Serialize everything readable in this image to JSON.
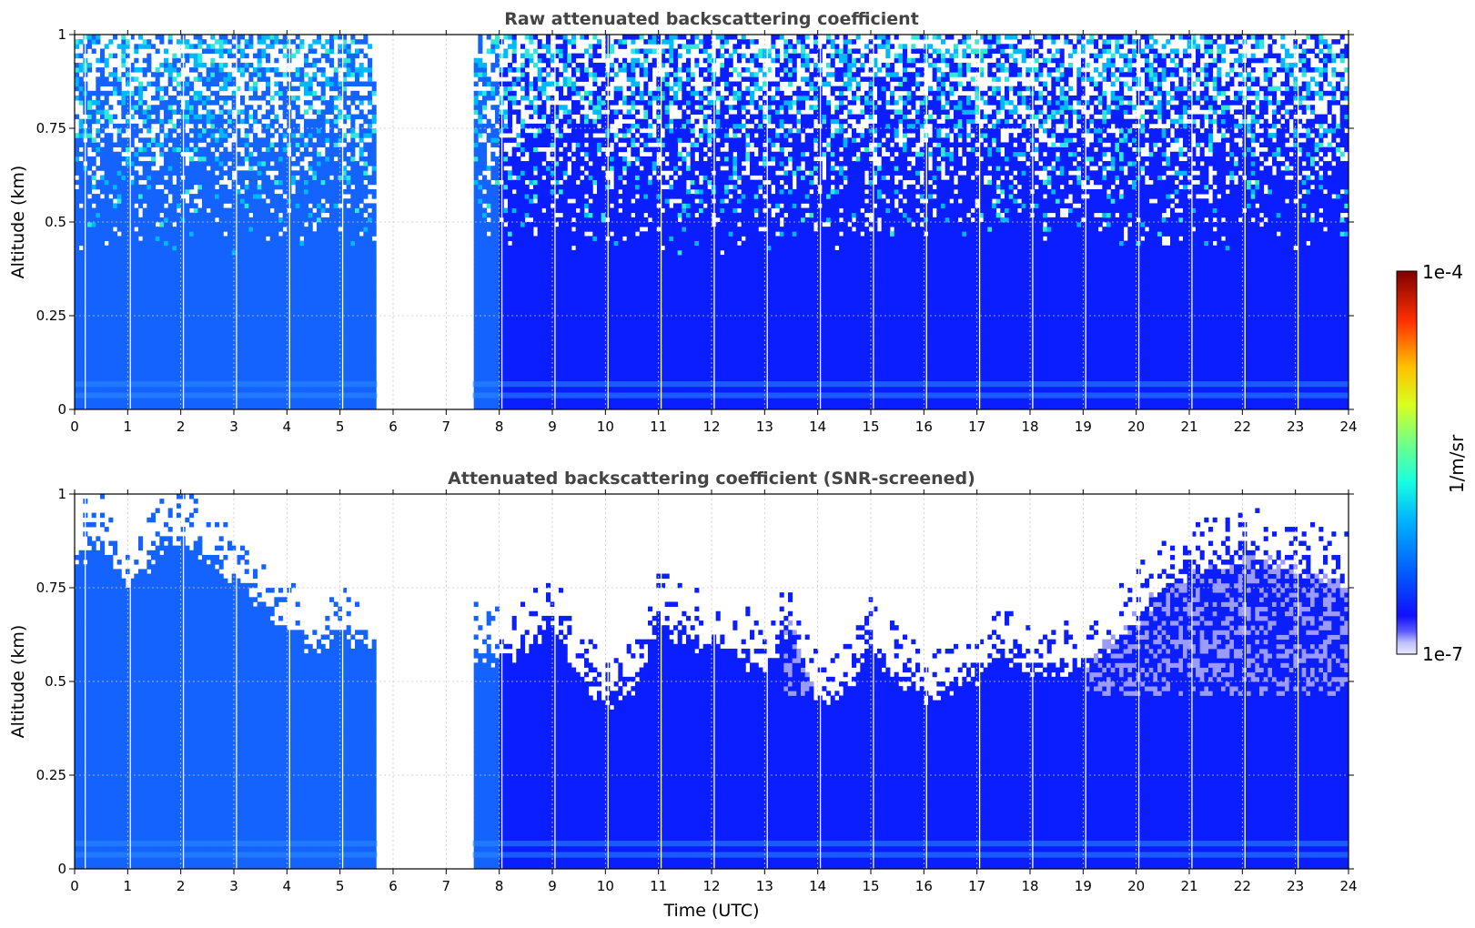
{
  "chart_data": [
    {
      "type": "heatmap",
      "title": "Raw attenuated backscattering coefficient",
      "xlabel": "",
      "ylabel": "Altitude (km)",
      "xlim": [
        0,
        24
      ],
      "ylim": [
        0,
        1
      ],
      "xticks": [
        "0",
        "1",
        "2",
        "3",
        "4",
        "5",
        "6",
        "7",
        "8",
        "9",
        "10",
        "11",
        "12",
        "13",
        "14",
        "15",
        "16",
        "17",
        "18",
        "19",
        "20",
        "21",
        "22",
        "23",
        "24"
      ],
      "yticks": [
        "0",
        "0.25",
        "0.5",
        "0.75",
        "1"
      ],
      "grid": true,
      "colorscale": "jet (log)",
      "data_gaps_utc": [
        [
          5.7,
          7.5
        ]
      ],
      "profile_breaks_utc": [
        0.2,
        1.05,
        2.05,
        3.05,
        4.05,
        5.05,
        8.05,
        9.05,
        10.05,
        11.05,
        12.05,
        13.05,
        14.05,
        15.05,
        16.05,
        17.05,
        18.05,
        19.05,
        20.05,
        21.05,
        22.05,
        23.05
      ],
      "noise_onset_altitude_km": 0.4
    },
    {
      "type": "heatmap",
      "title": "Attenuated backscattering coefficient (SNR-screened)",
      "xlabel": "Time (UTC)",
      "ylabel": "Altitude (km)",
      "xlim": [
        0,
        24
      ],
      "ylim": [
        0,
        1
      ],
      "xticks": [
        "0",
        "1",
        "2",
        "3",
        "4",
        "5",
        "6",
        "7",
        "8",
        "9",
        "10",
        "11",
        "12",
        "13",
        "14",
        "15",
        "16",
        "17",
        "18",
        "19",
        "20",
        "21",
        "22",
        "23",
        "24"
      ],
      "yticks": [
        "0",
        "0.25",
        "0.5",
        "0.75",
        "1"
      ],
      "grid": true,
      "colorscale": "jet (log)",
      "data_gaps_utc": [
        [
          5.7,
          7.5
        ]
      ],
      "profile_breaks_utc": [
        0.2,
        1.05,
        2.05,
        3.05,
        4.05,
        5.05,
        8.05,
        9.05,
        10.05,
        11.05,
        12.05,
        13.05,
        14.05,
        15.05,
        16.05,
        17.05,
        18.05,
        19.05,
        20.05,
        21.05,
        22.05,
        23.05
      ],
      "screened_top_km": {
        "time_utc": [
          0.0,
          0.5,
          1.0,
          1.5,
          2.0,
          2.5,
          3.0,
          3.5,
          4.0,
          4.5,
          5.0,
          5.7,
          7.5,
          8.0,
          8.5,
          9.0,
          9.5,
          10.0,
          10.5,
          11.0,
          11.5,
          12.0,
          12.5,
          13.0,
          13.5,
          14.0,
          14.5,
          15.0,
          15.5,
          16.0,
          16.5,
          17.0,
          17.5,
          18.0,
          18.5,
          19.0,
          19.5,
          20.0,
          20.5,
          21.0,
          21.5,
          22.0,
          22.5,
          23.0,
          23.5,
          24.0
        ],
        "altitude_km": [
          0.82,
          0.86,
          0.74,
          0.83,
          0.88,
          0.82,
          0.77,
          0.7,
          0.64,
          0.58,
          0.62,
          0.6,
          0.57,
          0.56,
          0.58,
          0.66,
          0.52,
          0.44,
          0.48,
          0.66,
          0.6,
          0.6,
          0.55,
          0.52,
          0.64,
          0.44,
          0.46,
          0.6,
          0.5,
          0.46,
          0.48,
          0.5,
          0.58,
          0.52,
          0.52,
          0.53,
          0.6,
          0.66,
          0.74,
          0.8,
          0.8,
          0.82,
          0.82,
          0.8,
          0.78,
          0.75
        ]
      }
    }
  ],
  "colorbar": {
    "label": "1/m/sr",
    "max_label": "1e-4",
    "min_label": "1e-7",
    "scale": "log",
    "range": [
      1e-07,
      0.0001
    ]
  },
  "colors": {
    "cloud_blue_morning": "#1463ff",
    "cloud_blue_afternoon": "#0a1eff",
    "grid": "#c8c8c8"
  }
}
